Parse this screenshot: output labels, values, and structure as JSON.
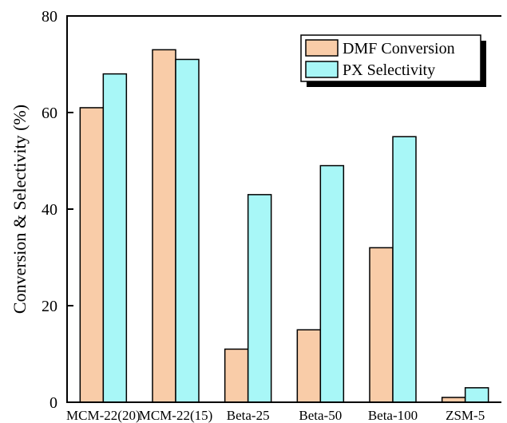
{
  "chart_data": {
    "type": "bar",
    "title": "",
    "xlabel": "",
    "ylabel": "Conversion & Selectivity (%)",
    "ylim": [
      0,
      80
    ],
    "yticks": [
      0,
      20,
      40,
      60,
      80
    ],
    "categories": [
      "MCM-22(20)",
      "MCM-22(15)",
      "Beta-25",
      "Beta-50",
      "Beta-100",
      "ZSM-5"
    ],
    "series": [
      {
        "name": "DMF Conversion",
        "color": "#f9cca8",
        "values": [
          61,
          73,
          11,
          15,
          32,
          1
        ]
      },
      {
        "name": "PX Selectivity",
        "color": "#a8f7f7",
        "values": [
          68,
          71,
          43,
          49,
          55,
          3
        ]
      }
    ],
    "legend_position": "top-right",
    "grid": false
  }
}
